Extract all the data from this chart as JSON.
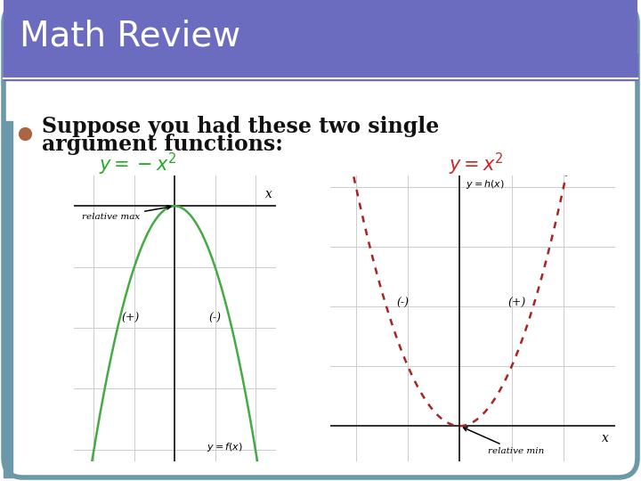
{
  "title": "Math Review",
  "title_bg_color": "#6b6bbf",
  "slide_bg_color": "#ffffff",
  "slide_border_color": "#6b99aa",
  "slide_left_accent_color": "#6b99aa",
  "bullet_color": "#aa6644",
  "text_color": "#111111",
  "eq1_color": "#22aa22",
  "eq2_color": "#cc2222",
  "graph1_curve_color": "#44aa44",
  "graph2_curve_color": "#aa2222",
  "graph_bg_color": "#ffffff",
  "graph_grid_color": "#cccccc",
  "graph_axis_color": "#222222",
  "title_text": "Math Review",
  "bullet_line1": "Suppose you had these two single",
  "bullet_line2": "argument functions:",
  "eq1_label": "$y = -x^2$",
  "eq2_label": "$y = x^2$",
  "graph1_annot_max": "relative max",
  "graph1_plus": "(+)",
  "graph1_minus": "(-)",
  "graph1_ylabel": "$y = f(x)$",
  "graph2_annot_min": "relative min",
  "graph2_minus": "(-)",
  "graph2_plus": "(+)",
  "graph2_ylabel": "$y = h(x)$",
  "x_label": "x"
}
